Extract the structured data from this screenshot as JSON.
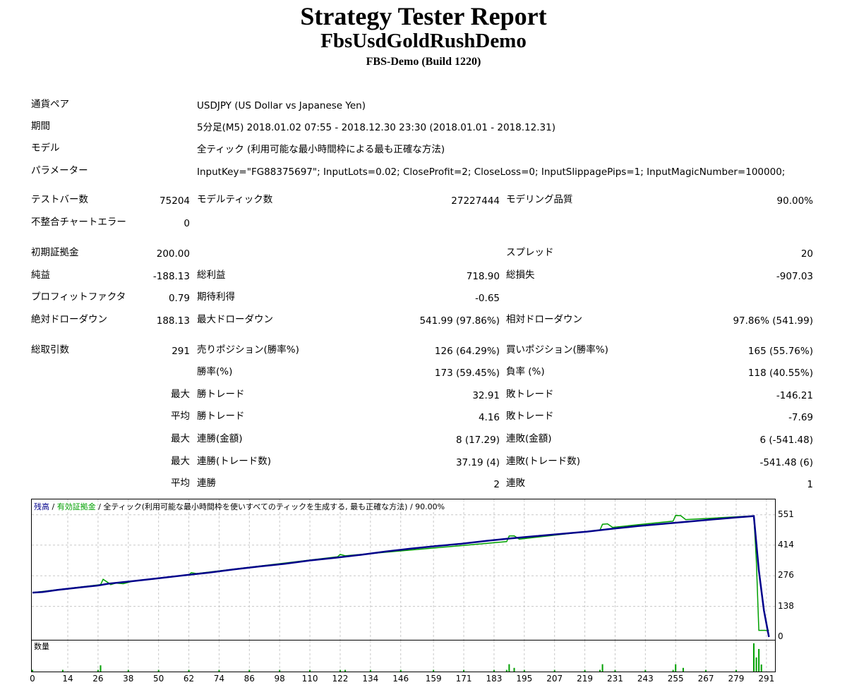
{
  "header": {
    "title": "Strategy Tester Report",
    "subtitle": "FbsUsdGoldRushDemo",
    "server": "FBS-Demo (Build 1220)"
  },
  "info": {
    "symbol_label": "通貨ペア",
    "symbol_value": "USDJPY (US Dollar vs Japanese Yen)",
    "period_label": "期間",
    "period_value": "5分足(M5) 2018.01.02 07:55 - 2018.12.30 23:30 (2018.01.01 - 2018.12.31)",
    "model_label": "モデル",
    "model_value": "全ティック (利用可能な最小時間枠による最も正確な方法)",
    "params_label": "パラメーター",
    "params_value": "InputKey=\"FG88375697\"; InputLots=0.02; CloseProfit=2; CloseLoss=0; InputSlippagePips=1; InputMagicNumber=100000;"
  },
  "stats": {
    "bars_label": "テストバー数",
    "bars_value": "75204",
    "ticks_label": "モデルティック数",
    "ticks_value": "27227444",
    "quality_label": "モデリング品質",
    "quality_value": "90.00%",
    "errors_label": "不整合チャートエラー",
    "errors_value": "0",
    "deposit_label": "初期証拠金",
    "deposit_value": "200.00",
    "spread_label": "スプレッド",
    "spread_value": "20",
    "net_label": "純益",
    "net_value": "-188.13",
    "gross_profit_label": "総利益",
    "gross_profit_value": "718.90",
    "gross_loss_label": "総損失",
    "gross_loss_value": "-907.03",
    "pf_label": "プロフィットファクタ",
    "pf_value": "0.79",
    "payoff_label": "期待利得",
    "payoff_value": "-0.65",
    "abs_dd_label": "絶対ドローダウン",
    "abs_dd_value": "188.13",
    "max_dd_label": "最大ドローダウン",
    "max_dd_value": "541.99 (97.86%)",
    "rel_dd_label": "相対ドローダウン",
    "rel_dd_value": "97.86% (541.99)",
    "trades_label": "総取引数",
    "trades_value": "291",
    "short_label": "売りポジション(勝率%)",
    "short_value": "126 (64.29%)",
    "long_label": "買いポジション(勝率%)",
    "long_value": "165 (55.76%)",
    "win_label": "勝率(%)",
    "win_value": "173 (59.45%)",
    "loss_label": "負率 (%)",
    "loss_value": "118 (40.55%)",
    "max_label": "最大",
    "avg_label": "平均",
    "largest_profit_label": "勝トレード",
    "largest_profit_value": "32.91",
    "largest_loss_label": "敗トレード",
    "largest_loss_value": "-146.21",
    "avg_profit_label": "勝トレード",
    "avg_profit_value": "4.16",
    "avg_loss_label": "敗トレード",
    "avg_loss_value": "-7.69",
    "max_cons_wins_label": "連勝(金額)",
    "max_cons_wins_value": "8 (17.29)",
    "max_cons_losses_label": "連敗(金額)",
    "max_cons_losses_value": "6 (-541.48)",
    "max_cons_profit_label": "連勝(トレード数)",
    "max_cons_profit_value": "37.19 (4)",
    "max_cons_loss_label": "連敗(トレード数)",
    "max_cons_loss_value": "-541.48 (6)",
    "avg_cons_wins_label": "連勝",
    "avg_cons_wins_value": "2",
    "avg_cons_losses_label": "連敗",
    "avg_cons_losses_value": "1"
  },
  "chart_data": {
    "type": "line",
    "legend": {
      "balance": "残高",
      "sep1": " / ",
      "equity": "有効証拠金",
      "sep2": " / ",
      "model": "全ティック(利用可能な最小時間枠を使いすべてのティックを生成する, 最も正確な方法)",
      "sep3": " / ",
      "quality": "90.00%"
    },
    "volume_label": "数量",
    "colors": {
      "balance": "#00008b",
      "equity": "#00a000",
      "grid": "#c8c8c8",
      "frame": "#000000"
    },
    "ylim": [
      0,
      566
    ],
    "xlim": [
      0,
      293
    ],
    "y_ticks": [
      "551",
      "414",
      "276",
      "138",
      "0"
    ],
    "y_tick_values": [
      551,
      414,
      276,
      138,
      0
    ],
    "x_ticks": [
      "0",
      "14",
      "26",
      "38",
      "50",
      "62",
      "74",
      "86",
      "98",
      "110",
      "122",
      "134",
      "146",
      "159",
      "171",
      "183",
      "195",
      "207",
      "219",
      "231",
      "243",
      "255",
      "267",
      "279",
      "291"
    ],
    "x_tick_values": [
      0,
      14,
      26,
      38,
      50,
      62,
      74,
      86,
      98,
      110,
      122,
      134,
      146,
      159,
      171,
      183,
      195,
      207,
      219,
      231,
      243,
      255,
      267,
      279,
      291
    ],
    "balance": {
      "x": [
        0,
        4,
        10,
        20,
        26,
        30,
        40,
        50,
        60,
        70,
        80,
        90,
        100,
        110,
        120,
        130,
        140,
        150,
        160,
        170,
        180,
        190,
        200,
        210,
        220,
        230,
        240,
        250,
        260,
        270,
        280,
        286,
        288,
        290,
        292
      ],
      "y": [
        200,
        203,
        212,
        225,
        232,
        240,
        252,
        265,
        278,
        290,
        305,
        318,
        330,
        345,
        357,
        370,
        385,
        398,
        410,
        420,
        433,
        445,
        455,
        465,
        475,
        488,
        500,
        510,
        520,
        530,
        540,
        545,
        300,
        120,
        0
      ]
    },
    "equity": {
      "x": [
        0,
        27,
        28,
        30,
        31,
        33,
        36,
        38,
        40,
        62,
        63,
        65,
        121,
        122,
        124,
        188,
        189,
        191,
        193,
        225,
        226,
        228,
        230,
        254,
        255,
        257,
        259,
        286,
        287,
        288,
        292
      ],
      "y": [
        200,
        236,
        260,
        245,
        236,
        243,
        240,
        246,
        252,
        280,
        290,
        286,
        362,
        372,
        366,
        430,
        455,
        456,
        441,
        482,
        508,
        510,
        494,
        522,
        548,
        547,
        529,
        546,
        340,
        30,
        30
      ]
    },
    "volume": {
      "x": [
        0,
        12,
        26,
        27,
        38,
        50,
        62,
        74,
        86,
        98,
        110,
        122,
        124,
        134,
        146,
        159,
        171,
        183,
        188,
        189,
        191,
        195,
        207,
        219,
        225,
        226,
        231,
        243,
        254,
        255,
        258,
        267,
        279,
        286,
        287,
        288,
        289
      ],
      "y": [
        0.06,
        0.06,
        0.06,
        0.22,
        0.06,
        0.06,
        0.06,
        0.06,
        0.06,
        0.06,
        0.06,
        0.06,
        0.06,
        0.06,
        0.06,
        0.06,
        0.06,
        0.06,
        0.06,
        0.26,
        0.13,
        0.06,
        0.06,
        0.06,
        0.06,
        0.26,
        0.06,
        0.06,
        0.06,
        0.26,
        0.13,
        0.06,
        0.06,
        1,
        0.5,
        0.8,
        0.25
      ]
    }
  }
}
